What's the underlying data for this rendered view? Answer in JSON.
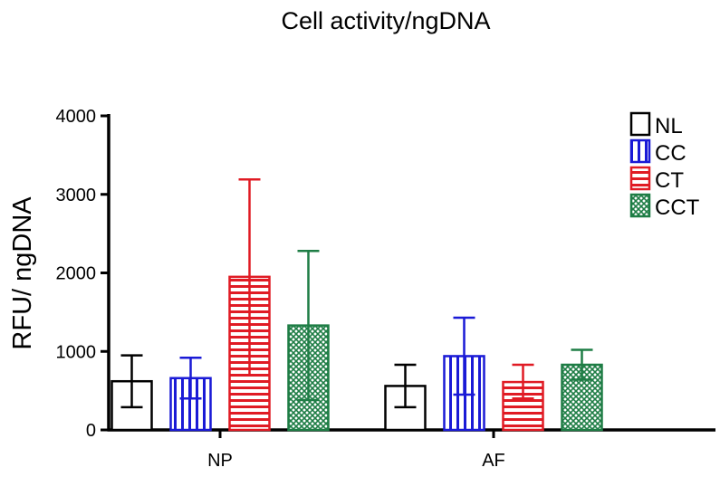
{
  "chart_data": {
    "type": "bar",
    "title": "Cell activity/ngDNA",
    "ylabel": "RFU/ ngDNA",
    "xlabel": "",
    "categories": [
      "NP",
      "AF"
    ],
    "ylim": [
      0,
      4000
    ],
    "yticks": [
      0,
      1000,
      2000,
      3000,
      4000
    ],
    "legend_position": "top-right",
    "grid": false,
    "series": [
      {
        "name": "NL",
        "values": [
          620,
          560
        ],
        "error_upper": [
          950,
          830
        ],
        "error_lower": [
          290,
          290
        ],
        "color": "#000000",
        "pattern": "none"
      },
      {
        "name": "CC",
        "values": [
          660,
          940
        ],
        "error_upper": [
          920,
          1430
        ],
        "error_lower": [
          400,
          450
        ],
        "color": "#1a1ad6",
        "pattern": "vertical-stripes"
      },
      {
        "name": "CT",
        "values": [
          1950,
          610
        ],
        "error_upper": [
          3190,
          830
        ],
        "error_lower": [
          700,
          400
        ],
        "color": "#e01b24",
        "pattern": "horizontal-stripes"
      },
      {
        "name": "CCT",
        "values": [
          1330,
          830
        ],
        "error_upper": [
          2280,
          1020
        ],
        "error_lower": [
          380,
          640
        ],
        "color": "#1e7d45",
        "pattern": "crosshatch"
      }
    ]
  }
}
